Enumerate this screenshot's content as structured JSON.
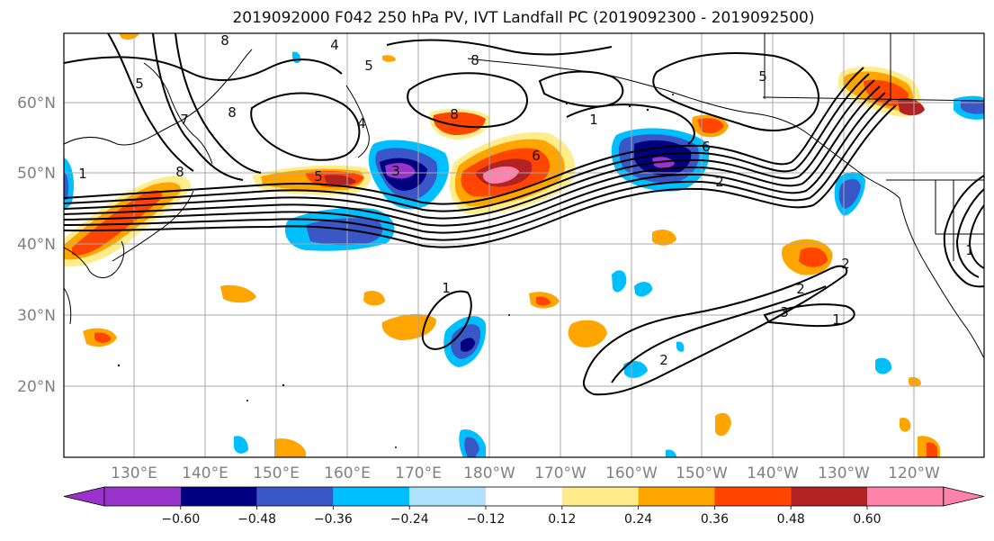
{
  "title": "2019092000 F042 250 hPa PV, IVT Landfall PC (2019092300 - 2019092500)",
  "lon_labels": [
    "130°E",
    "140°E",
    "150°E",
    "160°E",
    "170°E",
    "180°W",
    "170°W",
    "160°W",
    "150°W",
    "140°W",
    "130°W",
    "120°W"
  ],
  "lat_labels": [
    "60°N",
    "50°N",
    "40°N",
    "30°N",
    "20°N"
  ],
  "colorbar": {
    "ticks": [
      "−0.60",
      "−0.48",
      "−0.36",
      "−0.24",
      "−0.12",
      "0.12",
      "0.24",
      "0.36",
      "0.48",
      "0.60"
    ],
    "colors": [
      "#9933cc",
      "#000080",
      "#3a57c8",
      "#00bfff",
      "#b0e2ff",
      "#ffffff",
      "#ffec8b",
      "#ffa500",
      "#ff4500",
      "#b22222",
      "#ff82ab"
    ]
  },
  "contour_labels": [
    "8",
    "4",
    "5",
    "1",
    "8",
    "8",
    "7",
    "5",
    "5",
    "8",
    "8",
    "1",
    "4",
    "5",
    "6",
    "3",
    "2",
    "1",
    "2",
    "3",
    "1",
    "2",
    "2",
    "6",
    "1"
  ],
  "colors": {
    "contour": "#000000",
    "grid": "#a9a9a9",
    "land_outline": "#000000"
  }
}
